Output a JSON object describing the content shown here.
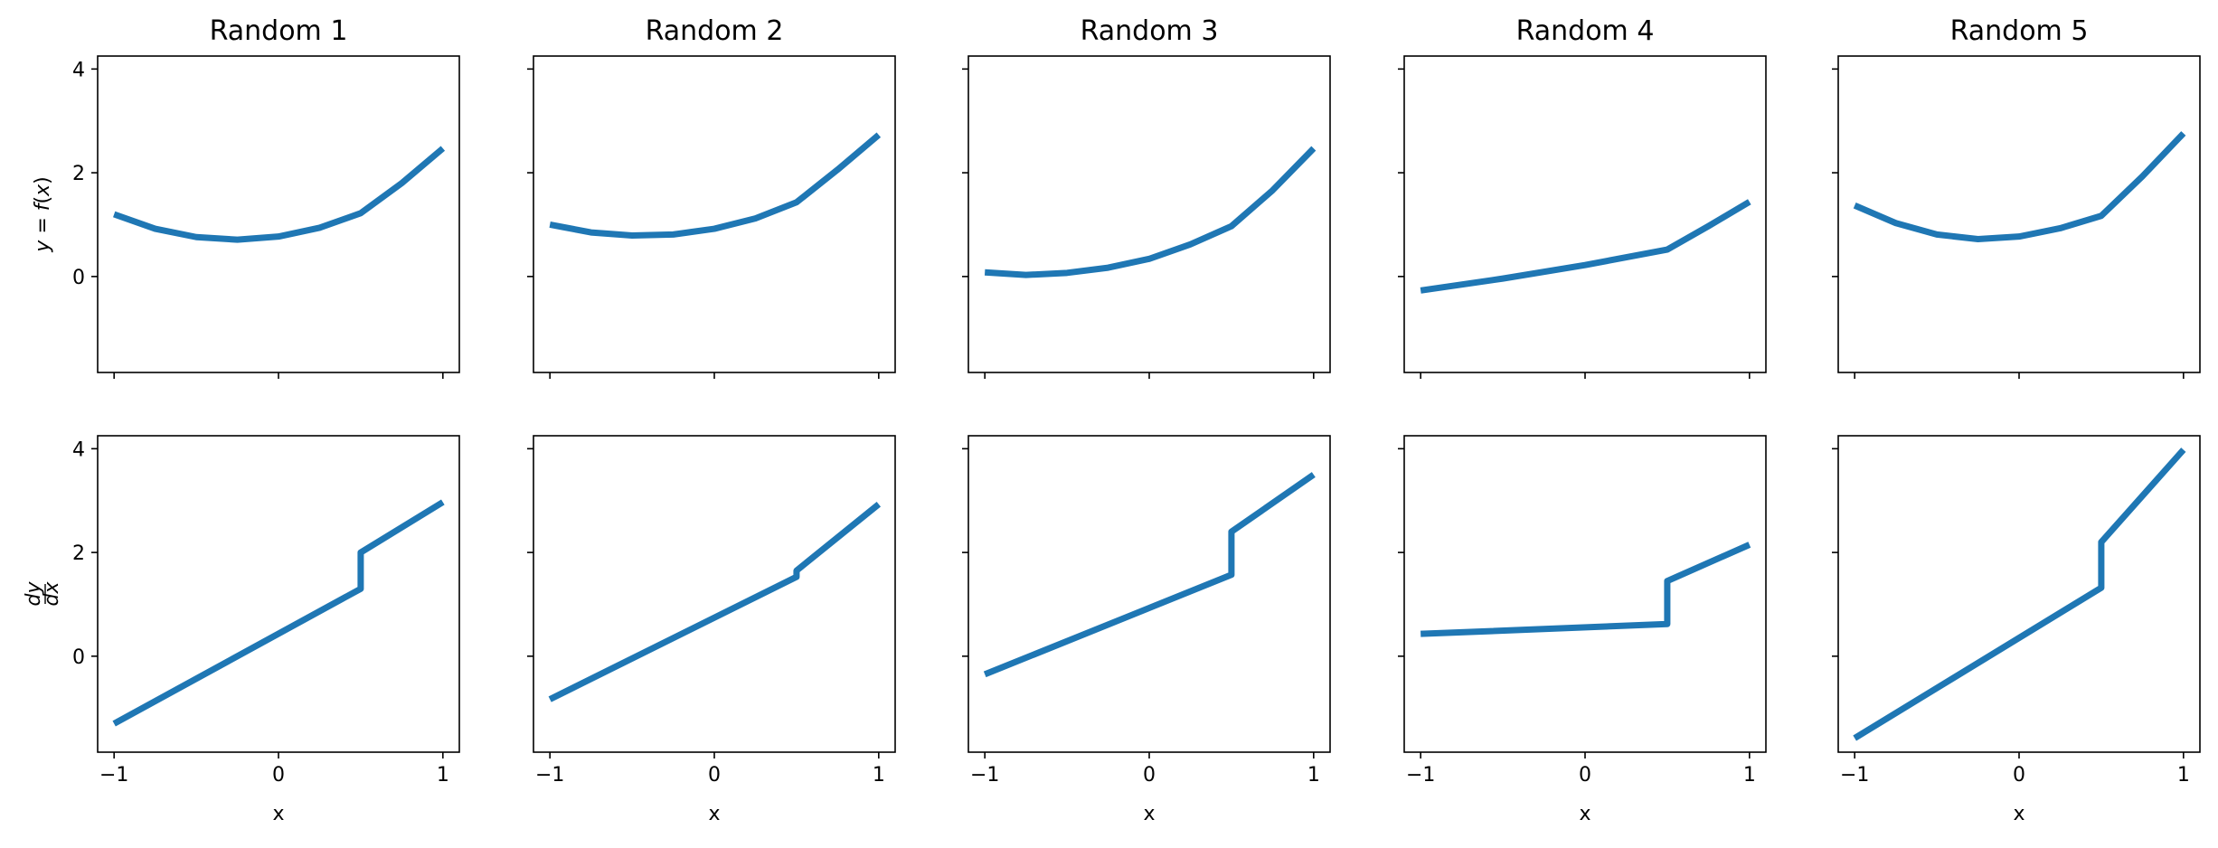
{
  "colors": {
    "line": "#1f77b4"
  },
  "chart_data": {
    "type": "line",
    "layout": "2x5 grid",
    "shared_x": true,
    "shared_y": true,
    "xlim": [
      -1.1,
      1.1
    ],
    "ylim": [
      -1.85,
      4.25
    ],
    "xticks": [
      -1,
      0,
      1
    ],
    "yticks": [
      0,
      2,
      4
    ],
    "xtick_labels": [
      "−1",
      "0",
      "1"
    ],
    "ytick_labels": [
      "0",
      "2",
      "4"
    ],
    "xlabel": "x",
    "row_ylabels": [
      "y = f(x)",
      "dy/dx"
    ],
    "panels": [
      {
        "title": "Random  1",
        "f": {
          "x": [
            -1,
            -0.75,
            -0.5,
            -0.25,
            0,
            0.25,
            0.5,
            0.75,
            1
          ],
          "y": [
            1.2,
            0.92,
            0.76,
            0.71,
            0.77,
            0.94,
            1.22,
            1.8,
            2.47
          ]
        },
        "dfdx": {
          "x": [
            -1,
            0.5,
            0.5,
            1
          ],
          "y": [
            -1.3,
            1.3,
            2.0,
            2.97
          ]
        }
      },
      {
        "title": "Random  2",
        "f": {
          "x": [
            -1,
            -0.75,
            -0.5,
            -0.25,
            0,
            0.25,
            0.5,
            0.75,
            1
          ],
          "y": [
            1.0,
            0.85,
            0.79,
            0.81,
            0.92,
            1.12,
            1.43,
            2.06,
            2.73
          ]
        },
        "dfdx": {
          "x": [
            -1,
            0.5,
            0.5,
            1
          ],
          "y": [
            -0.83,
            1.53,
            1.65,
            2.93
          ]
        }
      },
      {
        "title": "Random  3",
        "f": {
          "x": [
            -1,
            -0.75,
            -0.5,
            -0.25,
            0,
            0.25,
            0.5,
            0.75,
            1
          ],
          "y": [
            0.08,
            0.03,
            0.07,
            0.17,
            0.34,
            0.62,
            0.97,
            1.66,
            2.47
          ]
        },
        "dfdx": {
          "x": [
            -1,
            0.5,
            0.5,
            1
          ],
          "y": [
            -0.35,
            1.57,
            2.4,
            3.5
          ]
        }
      },
      {
        "title": "Random  4",
        "f": {
          "x": [
            -1,
            -0.5,
            0,
            0.5,
            0.75,
            1
          ],
          "y": [
            -0.27,
            -0.04,
            0.22,
            0.52,
            0.97,
            1.44
          ]
        },
        "dfdx": {
          "x": [
            -1,
            0.5,
            0.5,
            1
          ],
          "y": [
            0.43,
            0.62,
            1.45,
            2.15
          ]
        }
      },
      {
        "title": "Random  5",
        "f": {
          "x": [
            -1,
            -0.75,
            -0.5,
            -0.25,
            0,
            0.25,
            0.5,
            0.75,
            1
          ],
          "y": [
            1.37,
            1.03,
            0.81,
            0.72,
            0.77,
            0.93,
            1.17,
            1.93,
            2.76
          ]
        },
        "dfdx": {
          "x": [
            -1,
            0.5,
            0.5,
            1
          ],
          "y": [
            -1.58,
            1.32,
            2.2,
            3.98
          ]
        }
      }
    ]
  }
}
